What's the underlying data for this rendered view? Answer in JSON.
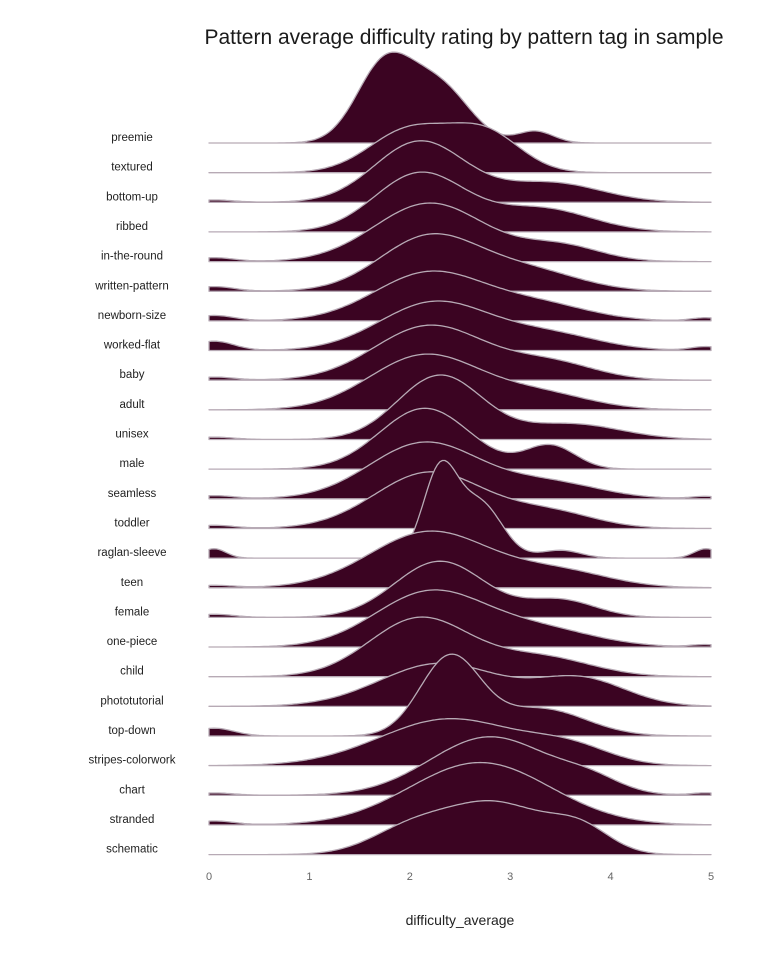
{
  "chart_data": {
    "type": "ridgeline",
    "title": "Pattern average difficulty rating by pattern tag in sample",
    "xlabel": "difficulty_average",
    "ylabel": "",
    "xlim": [
      0,
      5
    ],
    "x_ticks": [
      "0",
      "1",
      "2",
      "3",
      "4",
      "5"
    ],
    "fill_color": "#3b0422",
    "line_color": "#b7aab5",
    "grid": false,
    "series": [
      {
        "name": "preemie",
        "peaks": [
          {
            "mu": 1.75,
            "sigma": 0.28,
            "h": 1.0
          },
          {
            "mu": 2.3,
            "sigma": 0.3,
            "h": 0.7
          },
          {
            "mu": 3.25,
            "sigma": 0.18,
            "h": 0.15
          }
        ]
      },
      {
        "name": "textured",
        "peaks": [
          {
            "mu": 2.0,
            "sigma": 0.4,
            "h": 0.55
          },
          {
            "mu": 2.75,
            "sigma": 0.35,
            "h": 0.5
          }
        ]
      },
      {
        "name": "bottom-up",
        "peaks": [
          {
            "mu": 2.1,
            "sigma": 0.45,
            "h": 0.78
          },
          {
            "mu": 3.4,
            "sigma": 0.5,
            "h": 0.25
          },
          {
            "mu": 0.05,
            "sigma": 0.2,
            "h": 0.03
          }
        ]
      },
      {
        "name": "ribbed",
        "peaks": [
          {
            "mu": 2.1,
            "sigma": 0.45,
            "h": 0.75
          },
          {
            "mu": 3.3,
            "sigma": 0.5,
            "h": 0.3
          }
        ]
      },
      {
        "name": "in-the-round",
        "peaks": [
          {
            "mu": 2.2,
            "sigma": 0.55,
            "h": 0.75
          },
          {
            "mu": 3.5,
            "sigma": 0.4,
            "h": 0.2
          },
          {
            "mu": 0.05,
            "sigma": 0.2,
            "h": 0.05
          }
        ]
      },
      {
        "name": "written-pattern",
        "peaks": [
          {
            "mu": 2.2,
            "sigma": 0.5,
            "h": 0.7
          },
          {
            "mu": 3.2,
            "sigma": 0.5,
            "h": 0.25
          },
          {
            "mu": 0.05,
            "sigma": 0.2,
            "h": 0.06
          }
        ]
      },
      {
        "name": "newborn-size",
        "peaks": [
          {
            "mu": 2.2,
            "sigma": 0.55,
            "h": 0.62
          },
          {
            "mu": 3.3,
            "sigma": 0.5,
            "h": 0.2
          },
          {
            "mu": 0.05,
            "sigma": 0.2,
            "h": 0.07
          },
          {
            "mu": 4.95,
            "sigma": 0.15,
            "h": 0.04
          }
        ]
      },
      {
        "name": "worked-flat",
        "peaks": [
          {
            "mu": 2.25,
            "sigma": 0.55,
            "h": 0.62
          },
          {
            "mu": 3.4,
            "sigma": 0.5,
            "h": 0.2
          },
          {
            "mu": 0.05,
            "sigma": 0.2,
            "h": 0.12
          },
          {
            "mu": 4.95,
            "sigma": 0.15,
            "h": 0.05
          }
        ]
      },
      {
        "name": "baby",
        "peaks": [
          {
            "mu": 2.2,
            "sigma": 0.55,
            "h": 0.7
          },
          {
            "mu": 3.4,
            "sigma": 0.45,
            "h": 0.22
          },
          {
            "mu": 0.05,
            "sigma": 0.2,
            "h": 0.04
          }
        ]
      },
      {
        "name": "adult",
        "peaks": [
          {
            "mu": 2.15,
            "sigma": 0.55,
            "h": 0.7
          },
          {
            "mu": 3.3,
            "sigma": 0.5,
            "h": 0.2
          }
        ]
      },
      {
        "name": "unisex",
        "peaks": [
          {
            "mu": 2.3,
            "sigma": 0.42,
            "h": 0.82
          },
          {
            "mu": 3.6,
            "sigma": 0.5,
            "h": 0.2
          },
          {
            "mu": 0.05,
            "sigma": 0.2,
            "h": 0.03
          }
        ]
      },
      {
        "name": "male",
        "peaks": [
          {
            "mu": 2.15,
            "sigma": 0.45,
            "h": 0.78
          },
          {
            "mu": 3.4,
            "sigma": 0.25,
            "h": 0.3
          }
        ]
      },
      {
        "name": "seamless",
        "peaks": [
          {
            "mu": 2.15,
            "sigma": 0.55,
            "h": 0.72
          },
          {
            "mu": 3.4,
            "sigma": 0.5,
            "h": 0.2
          },
          {
            "mu": 0.05,
            "sigma": 0.2,
            "h": 0.04
          },
          {
            "mu": 4.95,
            "sigma": 0.15,
            "h": 0.03
          }
        ]
      },
      {
        "name": "toddler",
        "peaks": [
          {
            "mu": 2.2,
            "sigma": 0.55,
            "h": 0.72
          },
          {
            "mu": 3.4,
            "sigma": 0.45,
            "h": 0.2
          },
          {
            "mu": 0.05,
            "sigma": 0.2,
            "h": 0.04
          }
        ]
      },
      {
        "name": "raglan-sleeve",
        "peaks": [
          {
            "mu": 2.3,
            "sigma": 0.17,
            "h": 1.1
          },
          {
            "mu": 2.7,
            "sigma": 0.22,
            "h": 0.7
          },
          {
            "mu": 3.5,
            "sigma": 0.2,
            "h": 0.1
          },
          {
            "mu": 0.05,
            "sigma": 0.12,
            "h": 0.12
          },
          {
            "mu": 4.95,
            "sigma": 0.12,
            "h": 0.12
          }
        ]
      },
      {
        "name": "teen",
        "peaks": [
          {
            "mu": 2.2,
            "sigma": 0.6,
            "h": 0.72
          },
          {
            "mu": 3.5,
            "sigma": 0.5,
            "h": 0.2
          },
          {
            "mu": 0.05,
            "sigma": 0.2,
            "h": 0.03
          }
        ]
      },
      {
        "name": "female",
        "peaks": [
          {
            "mu": 2.3,
            "sigma": 0.45,
            "h": 0.72
          },
          {
            "mu": 3.5,
            "sigma": 0.35,
            "h": 0.22
          },
          {
            "mu": 0.05,
            "sigma": 0.2,
            "h": 0.04
          }
        ]
      },
      {
        "name": "one-piece",
        "peaks": [
          {
            "mu": 2.2,
            "sigma": 0.55,
            "h": 0.7
          },
          {
            "mu": 3.3,
            "sigma": 0.55,
            "h": 0.22
          },
          {
            "mu": 4.95,
            "sigma": 0.15,
            "h": 0.03
          }
        ]
      },
      {
        "name": "child",
        "peaks": [
          {
            "mu": 2.1,
            "sigma": 0.5,
            "h": 0.75
          },
          {
            "mu": 3.3,
            "sigma": 0.5,
            "h": 0.25
          }
        ]
      },
      {
        "name": "phototutorial",
        "peaks": [
          {
            "mu": 2.3,
            "sigma": 0.6,
            "h": 0.55
          },
          {
            "mu": 3.7,
            "sigma": 0.45,
            "h": 0.35
          }
        ]
      },
      {
        "name": "top-down",
        "peaks": [
          {
            "mu": 2.4,
            "sigma": 0.3,
            "h": 1.0
          },
          {
            "mu": 3.3,
            "sigma": 0.45,
            "h": 0.35
          },
          {
            "mu": 0.05,
            "sigma": 0.2,
            "h": 0.1
          }
        ]
      },
      {
        "name": "stripes-colorwork",
        "peaks": [
          {
            "mu": 2.4,
            "sigma": 0.7,
            "h": 0.6
          },
          {
            "mu": 3.6,
            "sigma": 0.4,
            "h": 0.2
          }
        ]
      },
      {
        "name": "chart",
        "peaks": [
          {
            "mu": 2.8,
            "sigma": 0.6,
            "h": 0.75
          },
          {
            "mu": 3.8,
            "sigma": 0.3,
            "h": 0.15
          },
          {
            "mu": 0.05,
            "sigma": 0.2,
            "h": 0.03
          },
          {
            "mu": 4.95,
            "sigma": 0.15,
            "h": 0.03
          }
        ]
      },
      {
        "name": "stranded",
        "peaks": [
          {
            "mu": 2.7,
            "sigma": 0.7,
            "h": 0.8
          },
          {
            "mu": 0.05,
            "sigma": 0.2,
            "h": 0.05
          }
        ]
      },
      {
        "name": "schematic",
        "peaks": [
          {
            "mu": 2.85,
            "sigma": 0.5,
            "h": 0.65
          },
          {
            "mu": 3.7,
            "sigma": 0.3,
            "h": 0.3
          },
          {
            "mu": 2.0,
            "sigma": 0.4,
            "h": 0.3
          }
        ]
      }
    ]
  }
}
